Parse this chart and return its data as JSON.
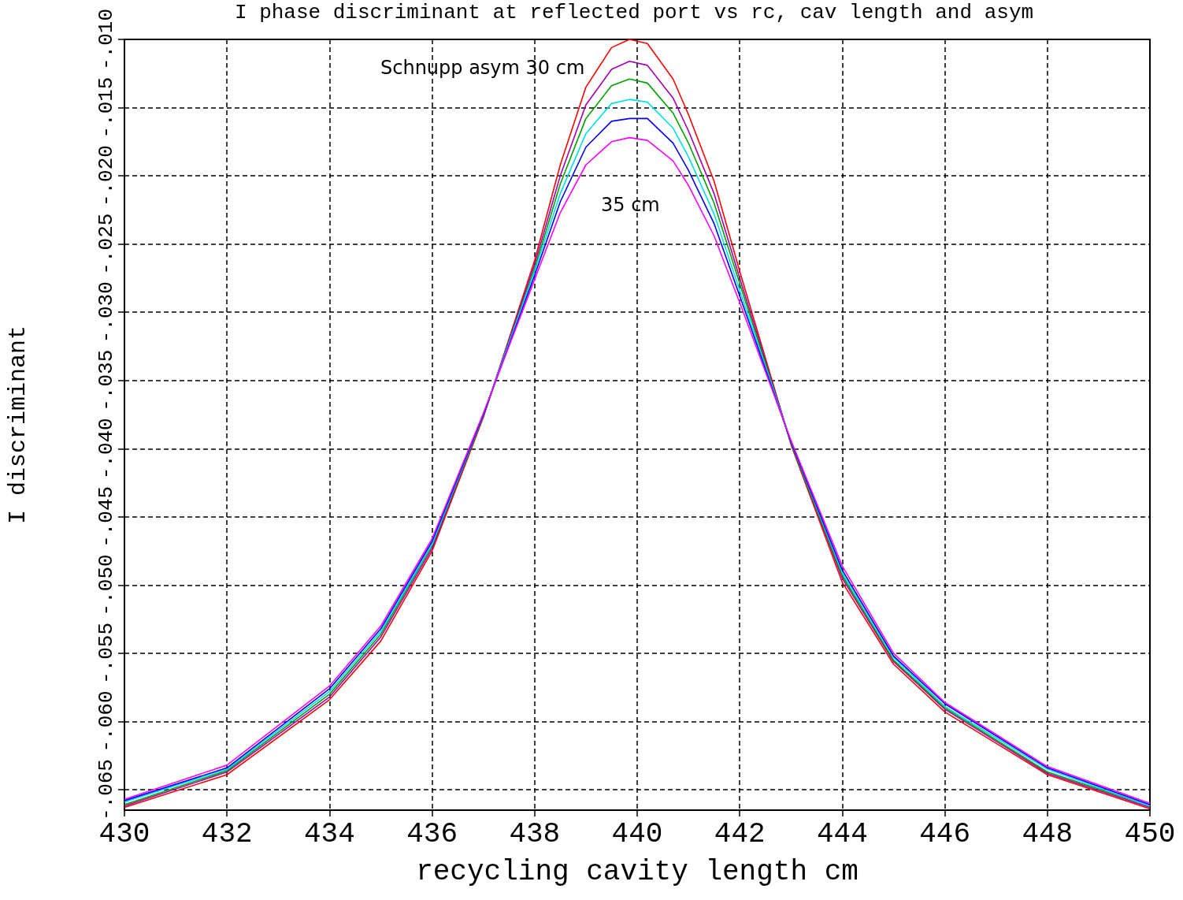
{
  "chart_data": {
    "type": "line",
    "title": "I phase discriminant at reflected port vs rc, cav length and asym",
    "xlabel": "recycling cavity length cm",
    "ylabel": "I discriminant",
    "x": [
      430,
      432,
      434,
      435,
      436,
      437,
      438,
      438.5,
      439,
      439.5,
      439.85,
      440.2,
      440.7,
      441,
      441.5,
      442,
      443,
      444,
      445,
      446,
      448,
      450
    ],
    "series": [
      {
        "color": "#ff0000",
        "values": [
          -0.0663,
          -0.0639,
          -0.0584,
          -0.0541,
          -0.0475,
          -0.0377,
          -0.0262,
          -0.0192,
          -0.0135,
          -0.0106,
          -0.01,
          -0.0103,
          -0.0129,
          -0.0155,
          -0.0204,
          -0.027,
          -0.0397,
          -0.0498,
          -0.0558,
          -0.0593,
          -0.0639,
          -0.0664
        ]
      },
      {
        "color": "#a000b0",
        "values": [
          -0.0662,
          -0.0637,
          -0.0582,
          -0.0538,
          -0.0473,
          -0.0376,
          -0.0265,
          -0.02,
          -0.0148,
          -0.0122,
          -0.0116,
          -0.0119,
          -0.0143,
          -0.0167,
          -0.0213,
          -0.0275,
          -0.0396,
          -0.0495,
          -0.0556,
          -0.0591,
          -0.0638,
          -0.0663
        ]
      },
      {
        "color": "#00a000",
        "values": [
          -0.0661,
          -0.0636,
          -0.058,
          -0.0536,
          -0.0471,
          -0.0376,
          -0.0268,
          -0.0206,
          -0.0158,
          -0.0134,
          -0.0129,
          -0.0132,
          -0.0154,
          -0.0176,
          -0.022,
          -0.0279,
          -0.0396,
          -0.0493,
          -0.0555,
          -0.059,
          -0.0637,
          -0.0662
        ]
      },
      {
        "color": "#00e0e0",
        "values": [
          -0.0659,
          -0.0635,
          -0.0578,
          -0.0534,
          -0.047,
          -0.0375,
          -0.027,
          -0.0213,
          -0.0169,
          -0.0147,
          -0.0144,
          -0.0146,
          -0.0165,
          -0.0186,
          -0.0228,
          -0.0284,
          -0.0395,
          -0.0491,
          -0.0553,
          -0.0589,
          -0.0635,
          -0.0662
        ]
      },
      {
        "color": "#0000ff",
        "values": [
          -0.0658,
          -0.0634,
          -0.0576,
          -0.0532,
          -0.0468,
          -0.0375,
          -0.0273,
          -0.0219,
          -0.0179,
          -0.016,
          -0.0158,
          -0.0158,
          -0.0176,
          -0.0196,
          -0.0235,
          -0.0288,
          -0.0395,
          -0.0489,
          -0.0552,
          -0.0587,
          -0.0634,
          -0.0661
        ]
      },
      {
        "color": "#ff00ff",
        "values": [
          -0.0657,
          -0.0632,
          -0.0574,
          -0.053,
          -0.0466,
          -0.0374,
          -0.0276,
          -0.0227,
          -0.0192,
          -0.0175,
          -0.0172,
          -0.0174,
          -0.0189,
          -0.0207,
          -0.0244,
          -0.0293,
          -0.0394,
          -0.0486,
          -0.055,
          -0.0586,
          -0.0633,
          -0.066
        ]
      }
    ],
    "xlim": [
      430,
      450
    ],
    "xticks": [
      430,
      432,
      434,
      436,
      438,
      440,
      442,
      444,
      446,
      448,
      450
    ],
    "ylim": [
      -0.0665,
      -0.01
    ],
    "yticks": [
      {
        "value": -0.065,
        "label": "-.065"
      },
      {
        "value": -0.06,
        "label": "-.060"
      },
      {
        "value": -0.055,
        "label": "-.055"
      },
      {
        "value": -0.05,
        "label": "-.050"
      },
      {
        "value": -0.045,
        "label": "-.045"
      },
      {
        "value": -0.04,
        "label": "-.040"
      },
      {
        "value": -0.035,
        "label": "-.035"
      },
      {
        "value": -0.03,
        "label": "-.030"
      },
      {
        "value": -0.025,
        "label": "-.025"
      },
      {
        "value": -0.02,
        "label": "-.020"
      },
      {
        "value": -0.015,
        "label": "-.015"
      },
      {
        "value": -0.01,
        "label": "-.010"
      }
    ],
    "annotations": [
      "Schnupp asym 30 cm",
      "35 cm"
    ],
    "grid": true,
    "marker": "none",
    "line_style": "solid"
  }
}
